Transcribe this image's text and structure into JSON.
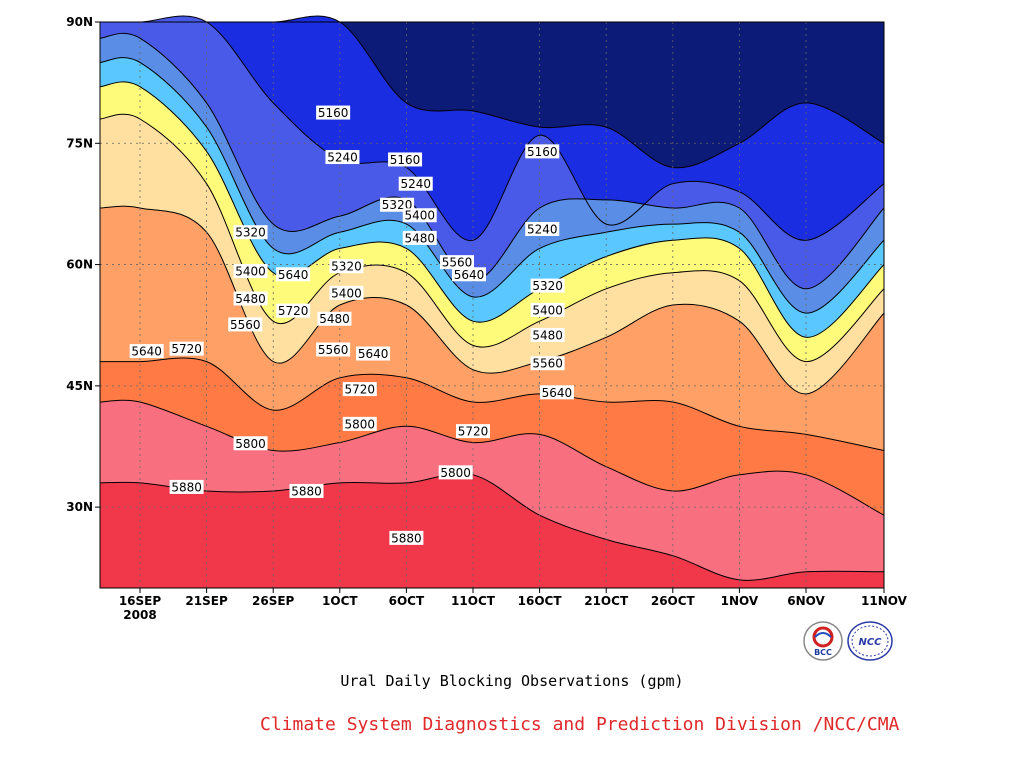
{
  "chart_data": {
    "type": "area",
    "title": "Ural Daily Blocking Observations (gpm)",
    "footer": "Climate System Diagnostics and Prediction Division /NCC/CMA",
    "y_ticks": [
      "90N",
      "75N",
      "60N",
      "45N",
      "30N"
    ],
    "y_tick_values": [
      90,
      75,
      60,
      45,
      30
    ],
    "ylim": [
      20,
      90
    ],
    "x_ticks": [
      "16SEP",
      "21SEP",
      "26SEP",
      "1OCT",
      "6OCT",
      "11OCT",
      "16OCT",
      "21OCT",
      "26OCT",
      "1NOV",
      "6NOV",
      "11NOV"
    ],
    "x_year": "2008",
    "grid": true,
    "levels": [
      5160,
      5240,
      5320,
      5400,
      5480,
      5560,
      5640,
      5720,
      5800,
      5880
    ],
    "colors": [
      "#0c1a78",
      "#1a2de0",
      "#4a5ae8",
      "#5a8ee6",
      "#5ac8ff",
      "#fffb7a",
      "#ffe0a0",
      "#ffa066",
      "#ff7a45",
      "#f87080",
      "#f0384a"
    ],
    "series": [
      {
        "level": 5160,
        "lat": [
          92,
          92,
          92,
          92,
          80,
          79,
          77,
          77,
          72,
          75,
          80,
          75
        ]
      },
      {
        "level": 5240,
        "lat": [
          90,
          92,
          80,
          73,
          72,
          63,
          76,
          65,
          70,
          69,
          63,
          70
        ]
      },
      {
        "level": 5320,
        "lat": [
          88,
          80,
          65,
          66,
          68,
          58,
          67,
          68,
          67,
          67,
          57,
          67
        ]
      },
      {
        "level": 5400,
        "lat": [
          85,
          77,
          62,
          64,
          65,
          56,
          62,
          64,
          65,
          64,
          54,
          63
        ]
      },
      {
        "level": 5480,
        "lat": [
          82,
          74,
          59,
          62,
          62,
          53,
          57,
          61,
          63,
          62,
          51,
          60
        ]
      },
      {
        "level": 5560,
        "lat": [
          78,
          70,
          53,
          59,
          59,
          50,
          53,
          57,
          59,
          58,
          48,
          57
        ]
      },
      {
        "level": 5640,
        "lat": [
          67,
          64,
          48,
          55,
          55,
          47,
          48,
          51,
          55,
          53,
          44,
          54
        ]
      },
      {
        "level": 5720,
        "lat": [
          48,
          48,
          42,
          46,
          46,
          43,
          44,
          43,
          43,
          40,
          39,
          37
        ]
      },
      {
        "level": 5800,
        "lat": [
          43,
          40,
          37,
          38,
          40,
          38,
          39,
          35,
          32,
          34,
          34,
          29
        ]
      },
      {
        "level": 5880,
        "lat": [
          33,
          32,
          32,
          33,
          33,
          34,
          29,
          26,
          24,
          21,
          22,
          22
        ]
      }
    ],
    "contour_labels": [
      {
        "text": "5160",
        "date": 15.5,
        "lat": 78.8
      },
      {
        "text": "5240",
        "date": 16.2,
        "lat": 73.3
      },
      {
        "text": "5160",
        "date": 20.9,
        "lat": 73.0
      },
      {
        "text": "5240",
        "date": 21.7,
        "lat": 70.0
      },
      {
        "text": "5320",
        "date": 20.3,
        "lat": 67.4
      },
      {
        "text": "5160",
        "date": 31.2,
        "lat": 74.0
      },
      {
        "text": "5240",
        "date": 31.2,
        "lat": 64.4
      },
      {
        "text": "5320",
        "date": 9.3,
        "lat": 64.0
      },
      {
        "text": "5400",
        "date": 9.3,
        "lat": 59.2
      },
      {
        "text": "5480",
        "date": 9.3,
        "lat": 55.8
      },
      {
        "text": "5560",
        "date": 8.9,
        "lat": 52.6
      },
      {
        "text": "5640",
        "date": 12.5,
        "lat": 58.8
      },
      {
        "text": "5720",
        "date": 12.5,
        "lat": 54.3
      },
      {
        "text": "5320",
        "date": 16.5,
        "lat": 59.8
      },
      {
        "text": "5400",
        "date": 16.5,
        "lat": 56.5
      },
      {
        "text": "5480",
        "date": 15.6,
        "lat": 53.3
      },
      {
        "text": "5560",
        "date": 15.5,
        "lat": 49.5
      },
      {
        "text": "5640",
        "date": 18.5,
        "lat": 49.0
      },
      {
        "text": "5720",
        "date": 17.5,
        "lat": 44.6
      },
      {
        "text": "5800",
        "date": 17.5,
        "lat": 40.3
      },
      {
        "text": "5400",
        "date": 22.0,
        "lat": 66.1
      },
      {
        "text": "5480",
        "date": 22.0,
        "lat": 63.3
      },
      {
        "text": "5560",
        "date": 24.8,
        "lat": 60.3
      },
      {
        "text": "5640",
        "date": 25.7,
        "lat": 58.8
      },
      {
        "text": "5720",
        "date": 26.0,
        "lat": 39.4
      },
      {
        "text": "5800",
        "date": 24.7,
        "lat": 34.3
      },
      {
        "text": "5880",
        "date": 21.0,
        "lat": 26.2
      },
      {
        "text": "5640",
        "date": 1.5,
        "lat": 49.3
      },
      {
        "text": "5720",
        "date": 4.5,
        "lat": 49.6
      },
      {
        "text": "5880",
        "date": 4.5,
        "lat": 32.5
      },
      {
        "text": "5800",
        "date": 9.3,
        "lat": 37.9
      },
      {
        "text": "5880",
        "date": 13.5,
        "lat": 32.0
      },
      {
        "text": "5320",
        "date": 31.6,
        "lat": 57.4
      },
      {
        "text": "5400",
        "date": 31.6,
        "lat": 54.4
      },
      {
        "text": "5480",
        "date": 31.6,
        "lat": 51.3
      },
      {
        "text": "5560",
        "date": 31.6,
        "lat": 47.8
      },
      {
        "text": "5640",
        "date": 32.3,
        "lat": 44.2
      }
    ]
  },
  "logos": {
    "left": "BCC",
    "right": "NCC"
  }
}
